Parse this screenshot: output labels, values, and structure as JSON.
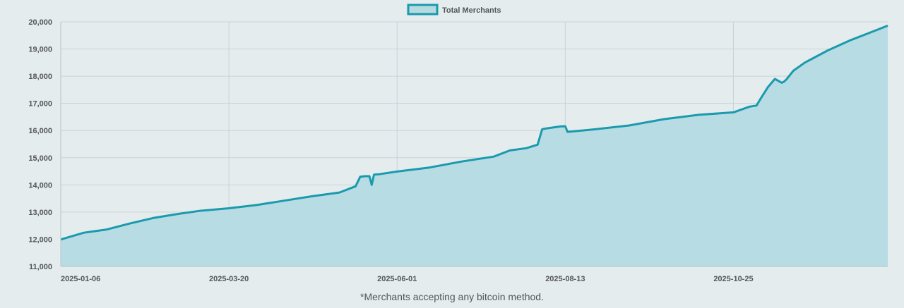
{
  "footnote": "*Merchants accepting any bitcoin method.",
  "colors": {
    "line": "#1a9aad",
    "fill": "#b5dbe1",
    "grid": "#c9d2d6",
    "background": "#e4ecee",
    "text": "#555555"
  },
  "chart_data": {
    "type": "area",
    "legend": {
      "label": "Total Merchants",
      "position": "top-center"
    },
    "series": [
      {
        "name": "Total Merchants"
      }
    ],
    "x_tick_labels": [
      "2025-01-06",
      "2025-03-20",
      "2025-06-01",
      "2025-08-13",
      "2025-10-25"
    ],
    "y_tick_labels": [
      "11,000",
      "12,000",
      "13,000",
      "14,000",
      "15,000",
      "16,000",
      "17,000",
      "18,000",
      "19,000",
      "20,000"
    ],
    "ylim": [
      11000,
      20000
    ],
    "xlim": [
      "2025-01-06",
      "2025-12-31"
    ],
    "grid": true,
    "x": [
      "2025-01-06",
      "2025-01-16",
      "2025-01-26",
      "2025-02-05",
      "2025-02-15",
      "2025-02-25",
      "2025-03-07",
      "2025-03-20",
      "2025-04-01",
      "2025-04-13",
      "2025-04-25",
      "2025-05-07",
      "2025-05-14",
      "2025-05-16",
      "2025-05-18",
      "2025-05-20",
      "2025-05-21",
      "2025-05-22",
      "2025-05-24",
      "2025-06-01",
      "2025-06-15",
      "2025-06-29",
      "2025-07-13",
      "2025-07-20",
      "2025-07-27",
      "2025-08-01",
      "2025-08-03",
      "2025-08-05",
      "2025-08-11",
      "2025-08-13",
      "2025-08-14",
      "2025-08-25",
      "2025-09-10",
      "2025-09-25",
      "2025-10-10",
      "2025-10-25",
      "2025-11-01",
      "2025-11-04",
      "2025-11-06",
      "2025-11-09",
      "2025-11-12",
      "2025-11-15",
      "2025-11-16",
      "2025-11-17",
      "2025-11-20",
      "2025-11-25",
      "2025-12-05",
      "2025-12-15",
      "2025-12-25",
      "2025-12-31"
    ],
    "values": [
      11990,
      12240,
      12360,
      12580,
      12780,
      12920,
      13040,
      13140,
      13260,
      13420,
      13580,
      13720,
      13950,
      14300,
      14320,
      14320,
      14000,
      14380,
      14390,
      14490,
      14640,
      14860,
      15040,
      15270,
      15350,
      15480,
      16050,
      16080,
      16150,
      16160,
      15950,
      16040,
      16190,
      16420,
      16580,
      16670,
      16880,
      16920,
      17200,
      17600,
      17900,
      17760,
      17800,
      17880,
      18200,
      18500,
      18950,
      19330,
      19660,
      19860
    ]
  }
}
